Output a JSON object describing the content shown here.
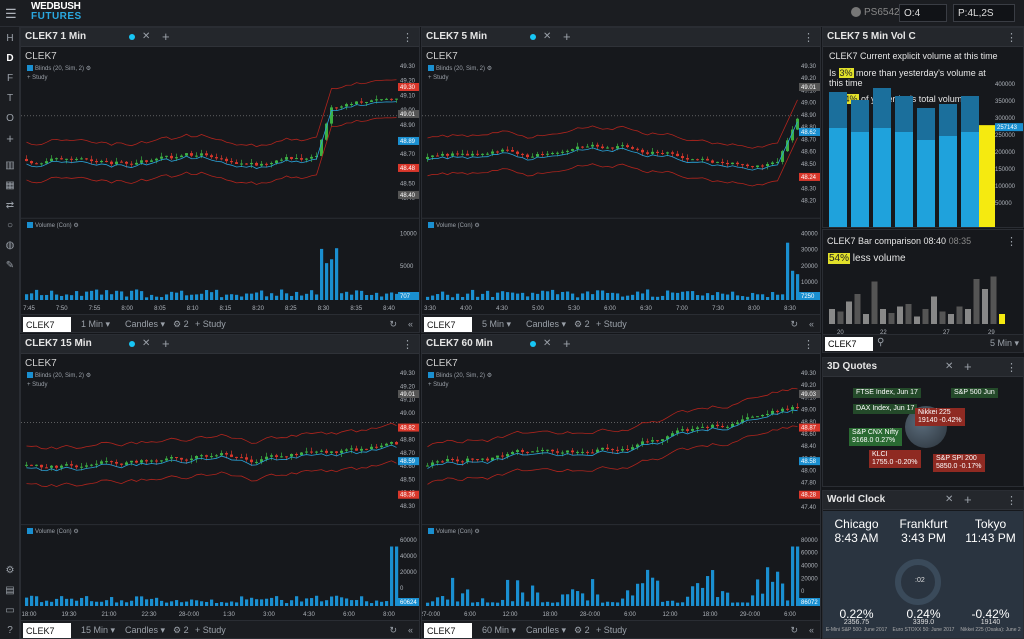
{
  "app": {
    "logo_line1": "WEDBUSH",
    "logo_line2": "FUTURES",
    "account": "PS6542",
    "orders_label": "O:",
    "orders_value": "4",
    "positions_label": "P:",
    "positions_value": "4L,2S"
  },
  "left_toolbar": [
    "H",
    "D",
    "F",
    "T",
    "O",
    "+"
  ],
  "colors": {
    "up": "#3cb043",
    "down": "#d9372b",
    "volume": "#1a8fd0",
    "band": "#b0241c",
    "ma": "#2aa3d8",
    "highlight": "#e2e12a",
    "panel_header": "#24272c"
  },
  "charts": [
    {
      "id": "c1",
      "title": "CLEK7 1 Min",
      "symbol": "CLEK7",
      "interval": "1 Min",
      "chart_type": "Candles",
      "indicators": "2",
      "study": "Study",
      "bollinger": "Blinds (20, Sim, 2)",
      "volume_label": "Volume (Con)",
      "y_ticks": [
        "49.30",
        "49.20",
        "49.10",
        "49.00",
        "48.90",
        "48.80",
        "48.70",
        "48.60",
        "48.50",
        "48.40"
      ],
      "x_ticks": [
        "7:45",
        "7:50",
        "7:55",
        "8:00",
        "8:05",
        "8:10",
        "8:15",
        "8:20",
        "8:25",
        "8:30",
        "8:35",
        "8:40"
      ],
      "vol_ticks": [
        "10000",
        "5000"
      ],
      "price_tags": [
        {
          "text": "49.30",
          "color": "#d9372b"
        },
        {
          "text": "49.01",
          "color": "#555"
        },
        {
          "text": "48.89",
          "color": "#1a8fd0"
        },
        {
          "text": "48.48",
          "color": "#d9372b"
        },
        {
          "text": "48.40",
          "color": "#555"
        }
      ],
      "vol_tag": "707"
    },
    {
      "id": "c2",
      "title": "CLEK7 5 Min",
      "symbol": "CLEK7",
      "interval": "5 Min",
      "chart_type": "Candles",
      "indicators": "2",
      "study": "Study",
      "bollinger": "Blinds (20, Sim, 2)",
      "volume_label": "Volume (Con)",
      "y_ticks": [
        "49.30",
        "49.20",
        "49.10",
        "49.00",
        "48.90",
        "48.80",
        "48.70",
        "48.60",
        "48.50",
        "48.40",
        "48.30",
        "48.20"
      ],
      "x_ticks": [
        "3:30",
        "4:00",
        "4:30",
        "5:00",
        "5:30",
        "6:00",
        "6:30",
        "7:00",
        "7:30",
        "8:00",
        "8:30"
      ],
      "vol_ticks": [
        "40000",
        "30000",
        "20000",
        "10000"
      ],
      "price_tags": [
        {
          "text": "49.01",
          "color": "#555"
        },
        {
          "text": "48.62",
          "color": "#1a8fd0"
        },
        {
          "text": "48.24",
          "color": "#d9372b"
        }
      ],
      "vol_tag": "7250"
    },
    {
      "id": "c3",
      "title": "CLEK7 15 Min",
      "symbol": "CLEK7",
      "interval": "15 Min",
      "chart_type": "Candles",
      "indicators": "2",
      "study": "Study",
      "bollinger": "Blinds (20, Sim, 2)",
      "volume_label": "Volume (Con)",
      "y_ticks": [
        "49.30",
        "49.20",
        "49.10",
        "49.00",
        "48.90",
        "48.80",
        "48.70",
        "48.60",
        "48.50",
        "48.40",
        "48.30"
      ],
      "x_ticks": [
        "18:00",
        "19:30",
        "21:00",
        "22:30",
        "28-0:00",
        "1:30",
        "3:00",
        "4:30",
        "6:00",
        "8:00"
      ],
      "vol_ticks": [
        "60000",
        "40000",
        "20000",
        "0"
      ],
      "price_tags": [
        {
          "text": "49.01",
          "color": "#555"
        },
        {
          "text": "48.82",
          "color": "#d9372b"
        },
        {
          "text": "48.59",
          "color": "#1a8fd0"
        },
        {
          "text": "48.36",
          "color": "#d9372b"
        }
      ],
      "vol_tag": "60624"
    },
    {
      "id": "c4",
      "title": "CLEK7 60 Min",
      "symbol": "CLEK7",
      "interval": "60 Min",
      "chart_type": "Candles",
      "indicators": "2",
      "study": "Study",
      "bollinger": "Blinds (20, Sim, 2)",
      "volume_label": "Volume (Con)",
      "y_ticks": [
        "49.30",
        "49.20",
        "49.10",
        "49.00",
        "48.80",
        "48.60",
        "48.40",
        "48.20",
        "48.00",
        "47.80",
        "47.60",
        "47.40"
      ],
      "x_ticks": [
        "27-0:00",
        "6:00",
        "12:00",
        "18:00",
        "28-0:00",
        "6:00",
        "12:00",
        "18:00",
        "29-0:00",
        "6:00"
      ],
      "vol_ticks": [
        "80000",
        "60000",
        "40000",
        "20000",
        "0"
      ],
      "price_tags": [
        {
          "text": "49.03",
          "color": "#555"
        },
        {
          "text": "48.87",
          "color": "#d9372b"
        },
        {
          "text": "48.58",
          "color": "#1a8fd0"
        },
        {
          "text": "48.28",
          "color": "#d9372b"
        }
      ],
      "vol_tag": "86072"
    }
  ],
  "vol_panel": {
    "title": "CLEK7 5 Min Vol C",
    "line1": "CLEK7 Current explicit volume at this time",
    "line2a": "Is ",
    "line2b": "3%",
    "line2c": " more than yesterday's volume at this time",
    "line3a": "Is ",
    "line3b": "84%",
    "line3c": " of yesterday's total volume",
    "y_ticks": [
      "400000",
      "350000",
      "300000",
      "250000",
      "200000",
      "150000",
      "100000",
      "50000"
    ],
    "tag": "257143",
    "bars": [
      {
        "total": 340000,
        "part": 250000
      },
      {
        "total": 320000,
        "part": 240000
      },
      {
        "total": 350000,
        "part": 250000
      },
      {
        "total": 330000,
        "part": 240000
      },
      {
        "total": 300000,
        "part": 220000
      },
      {
        "total": 310000,
        "part": 230000
      },
      {
        "total": 330000,
        "part": 240000
      }
    ],
    "current": 257143
  },
  "bar_panel": {
    "title": "CLEK7 Bar comparison 08:40",
    "title_time": "08:35",
    "pct": "54%",
    "text": " less volume",
    "x_ticks": [
      "20",
      "22",
      "27",
      "29"
    ],
    "bars": [
      0.3,
      0.25,
      0.45,
      0.6,
      0.2,
      0.85,
      0.3,
      0.22,
      0.35,
      0.4,
      0.15,
      0.3,
      0.55,
      0.25,
      0.2,
      0.35,
      0.3,
      0.9,
      0.7,
      0.95,
      0.2
    ],
    "symbol": "CLEK7",
    "interval": "5 Min"
  },
  "quotes_panel": {
    "title": "3D Quotes",
    "items": [
      {
        "name": "FTSE Index, Jun 17",
        "val": "",
        "color": "#244a2a"
      },
      {
        "name": "DAX Index, Jun 17",
        "val": "",
        "color": "#244a2a"
      },
      {
        "name": "S&P 500 Jun",
        "val": "",
        "color": "#244a2a"
      },
      {
        "name": "Nikkei 225",
        "val": "19140 -0.42%",
        "color": "#8f2a22"
      },
      {
        "name": "S&P CNX Nifty",
        "val": "9168.0 0.27%",
        "color": "#2a6a32"
      },
      {
        "name": "KLCI",
        "val": "1755.0 -0.20%",
        "color": "#8f2a22"
      },
      {
        "name": "S&P SPI 200",
        "val": "5850.0 -0.17%",
        "color": "#8f2a22"
      }
    ]
  },
  "clock_panel": {
    "title": "World Clock",
    "clocks": [
      {
        "city": "Chicago",
        "time": "8:43 AM",
        "pct": "0.22%",
        "val": "2356.75",
        "index": "E-Mini S&P 500: June 2017"
      },
      {
        "city": "Frankfurt",
        "time": "3:43 PM",
        "pct": "0.24%",
        "val": "3399.0",
        "index": "Euro STOXX 50: June 2017"
      },
      {
        "city": "Tokyo",
        "time": "11:43 PM",
        "pct": "-0.42%",
        "val": "19140",
        "index": "Nikkei 225 (Osaka): June 2"
      }
    ],
    "center_label": ":02"
  }
}
